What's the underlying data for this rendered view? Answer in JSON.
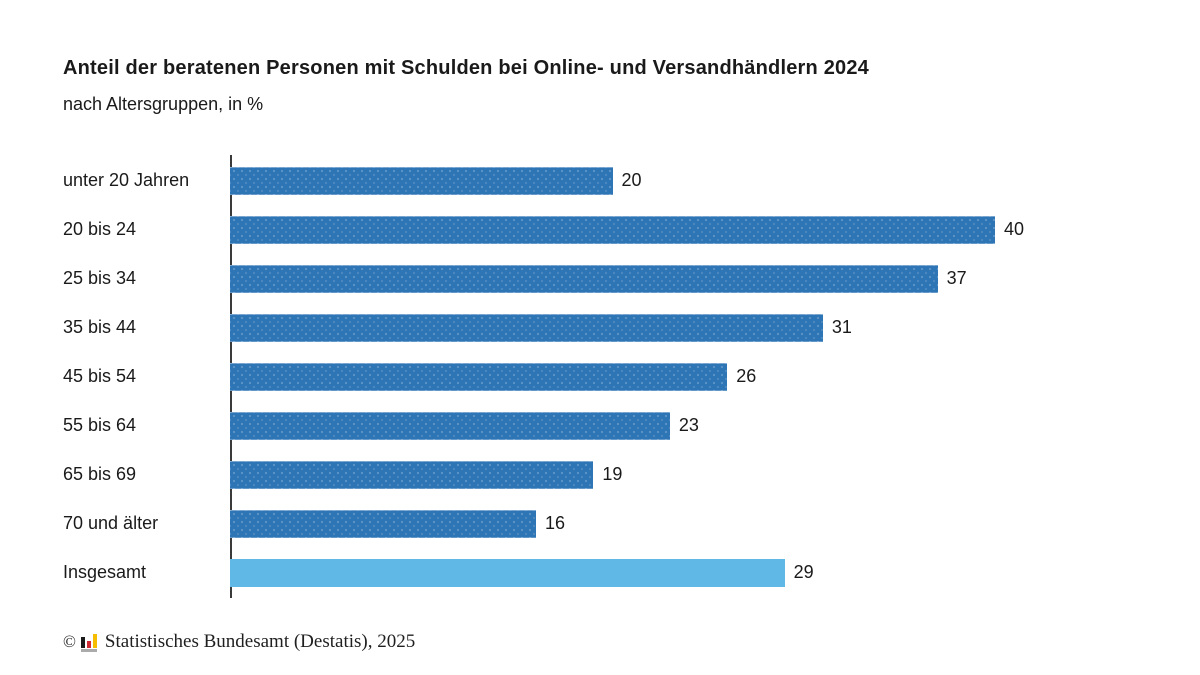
{
  "title": "Anteil der beratenen Personen mit Schulden bei Online- und Versandhändlern 2024",
  "subtitle": "nach Altersgruppen, in %",
  "footer": {
    "copyright_symbol": "©",
    "source_text": "Statistisches Bundesamt (Destatis), 2025"
  },
  "colors": {
    "bar": "#2e75b6",
    "highlight_bar": "#5fb8e6",
    "axis": "#3a3a3a",
    "text": "#1a1a1a"
  },
  "chart_data": {
    "type": "bar",
    "orientation": "horizontal",
    "title": "Anteil der beratenen Personen mit Schulden bei Online- und Versandhändlern 2024",
    "subtitle": "nach Altersgruppen, in %",
    "categories": [
      "unter 20 Jahren",
      "20 bis 24",
      "25 bis 34",
      "35 bis 44",
      "45 bis 54",
      "55 bis 64",
      "65 bis 69",
      "70 und älter",
      "Insgesamt"
    ],
    "values": [
      20,
      40,
      37,
      31,
      26,
      23,
      19,
      16,
      29
    ],
    "xlabel": "",
    "ylabel": "",
    "xlim": [
      0,
      40
    ],
    "value_labels": true,
    "grid": false,
    "legend": false,
    "highlight_index": 8,
    "highlight_category": "Insgesamt"
  }
}
